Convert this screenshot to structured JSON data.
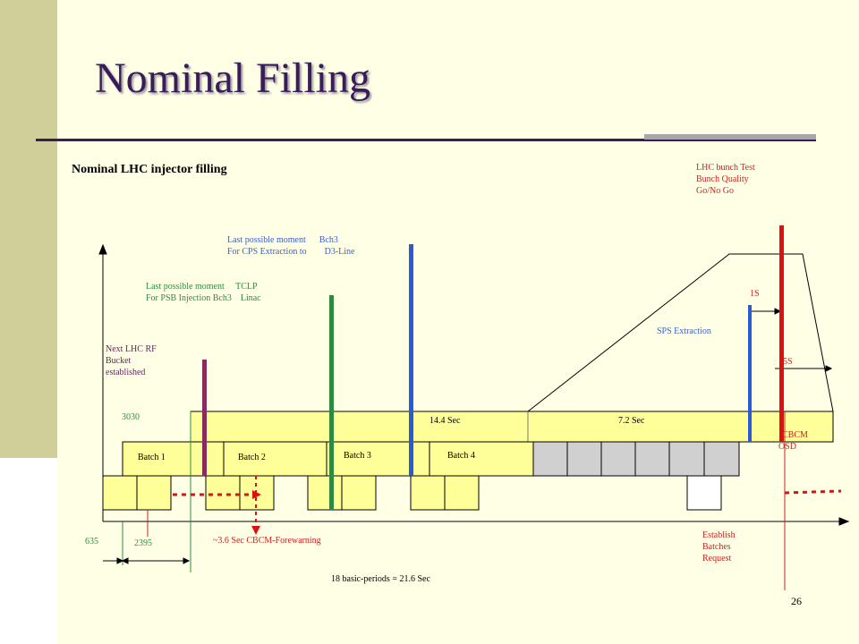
{
  "slide": {
    "title": "Nominal Filling",
    "subtitle": "Nominal LHC injector filling",
    "page_number": "26"
  },
  "labels": {
    "lhc_bunch_test": [
      "LHC bunch Test",
      "Bunch Quality",
      "Go/No Go"
    ],
    "cps_extraction": [
      "Last possible moment      Bch3",
      "For CPS Extraction to        D3-Line"
    ],
    "psb_injection": [
      "Last possible moment     TCLP",
      "For PSB Injection Bch3    Linac"
    ],
    "next_lhc_rf": [
      "Next LHC RF",
      "Bucket",
      "established"
    ],
    "sps_extraction": "SPS Extraction",
    "one_s": "1S",
    "five_s": "5S",
    "t3030": "3030",
    "t14_4": "14.4 Sec",
    "t7_2": "7.2 Sec",
    "cbcm_osd": [
      "CBCM",
      "OSD"
    ],
    "batches": [
      "Batch 1",
      "Batch 2",
      "Batch 3",
      "Batch 4"
    ],
    "t635": "635",
    "t2395": "2395",
    "forewarning": "~3.6 Sec CBCM-Forewarning",
    "establish": [
      "Establish",
      "Batches",
      "Request"
    ],
    "basic_periods": "18 basic-periods = 21.6 Sec"
  },
  "colors": {
    "sidebar": "#cfcf9a",
    "panel": "#ffffe6",
    "title": "#3a1c5a",
    "divider": "#3a1c5a",
    "timeline_fill": "#ffff99",
    "purple_marker": "#8b2a5b",
    "green_marker": "#2e8b3e",
    "blue_marker": "#2a5bd7",
    "red_marker": "#dd1111",
    "grey_slot": "#d0d0d0"
  }
}
